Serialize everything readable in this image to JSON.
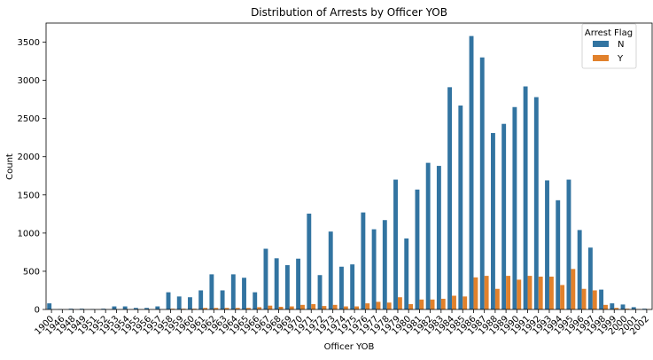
{
  "chart_data": {
    "type": "bar",
    "title": "Distribution of Arrests by Officer YOB",
    "xlabel": "Officer YOB",
    "ylabel": "Count",
    "ylim": [
      0,
      3750
    ],
    "yticks": [
      0,
      500,
      1000,
      1500,
      2000,
      2500,
      3000,
      3500
    ],
    "grid": false,
    "legend": {
      "title": "Arrest Flag",
      "placement": "top-right"
    },
    "categories": [
      "1900",
      "1946",
      "1948",
      "1949",
      "1951",
      "1952",
      "1953",
      "1954",
      "1955",
      "1956",
      "1957",
      "1958",
      "1959",
      "1960",
      "1961",
      "1962",
      "1963",
      "1964",
      "1965",
      "1966",
      "1967",
      "1968",
      "1969",
      "1970",
      "1971",
      "1972",
      "1973",
      "1974",
      "1975",
      "1976",
      "1977",
      "1978",
      "1979",
      "1980",
      "1981",
      "1982",
      "1983",
      "1984",
      "1985",
      "1986",
      "1987",
      "1988",
      "1989",
      "1990",
      "1991",
      "1992",
      "1993",
      "1994",
      "1995",
      "1996",
      "1997",
      "1998",
      "1999",
      "2000",
      "2001",
      "2002"
    ],
    "series": [
      {
        "name": "N",
        "color": "#3274a1",
        "values": [
          80,
          5,
          10,
          10,
          5,
          10,
          40,
          40,
          20,
          20,
          40,
          225,
          170,
          160,
          250,
          460,
          250,
          460,
          415,
          225,
          795,
          670,
          580,
          665,
          1255,
          450,
          1020,
          560,
          590,
          1270,
          1050,
          1170,
          1700,
          930,
          1570,
          1920,
          1880,
          2910,
          2670,
          3580,
          3300,
          2310,
          2430,
          2650,
          2920,
          2780,
          1690,
          1430,
          1700,
          1040,
          810,
          260,
          80,
          65,
          30,
          10
        ]
      },
      {
        "name": "Y",
        "color": "#e1812c",
        "values": [
          0,
          0,
          0,
          0,
          0,
          0,
          0,
          0,
          0,
          0,
          0,
          10,
          10,
          10,
          20,
          20,
          20,
          20,
          20,
          30,
          50,
          35,
          40,
          60,
          70,
          45,
          60,
          40,
          40,
          80,
          100,
          90,
          160,
          70,
          130,
          130,
          140,
          180,
          170,
          420,
          440,
          270,
          440,
          390,
          440,
          430,
          430,
          320,
          530,
          270,
          250,
          60,
          20,
          10,
          5,
          5
        ]
      }
    ]
  }
}
